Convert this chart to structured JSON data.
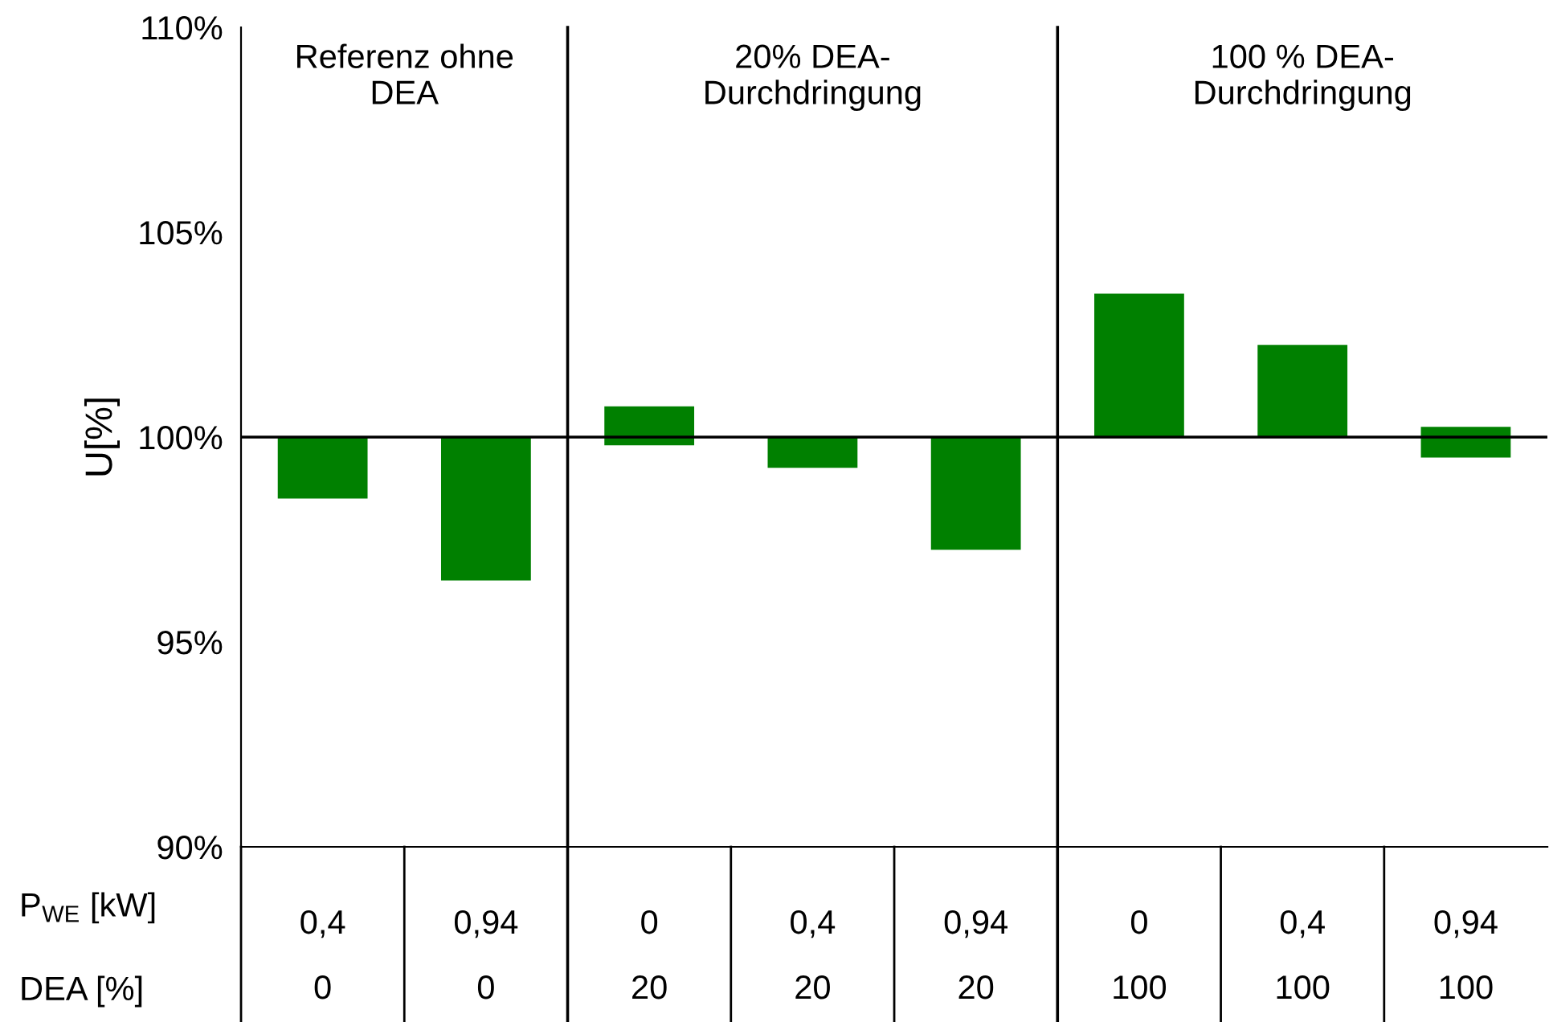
{
  "chart_data": {
    "type": "bar",
    "categories": [
      "0,4\n0",
      "0,94\n0",
      "0\n20",
      "0,4\n20",
      "0,94\n20",
      "0\n100",
      "0,4\n100",
      "0,94\n100"
    ],
    "values": [
      1.5,
      3.5,
      0.95,
      0.75,
      2.75,
      3.5,
      2.25,
      0.75
    ],
    "base": [
      98.5,
      96.5,
      99.8,
      99.25,
      97.25,
      100,
      100,
      99.5
    ],
    "color": "#008000",
    "ylabel": "U[%]",
    "xlabel": "P$_{WE}$ [kW]\nDEA [%]",
    "ylim": [
      90,
      110
    ],
    "yticks": [
      {
        "value": 90,
        "label": "90%"
      },
      {
        "value": 95,
        "label": "95%"
      },
      {
        "value": 100,
        "label": "100%"
      },
      {
        "value": 105,
        "label": "105%"
      },
      {
        "value": 110,
        "label": "110%"
      }
    ],
    "ref_lines": [
      {
        "axis": "y",
        "value": 100,
        "color": "#000000"
      }
    ],
    "annotations": [
      "Referenz ohne\nDEA",
      "20% DEA-\nDurchdringung",
      "100 % DEA-\nDurchdringung"
    ],
    "grid": false,
    "legend": false
  }
}
